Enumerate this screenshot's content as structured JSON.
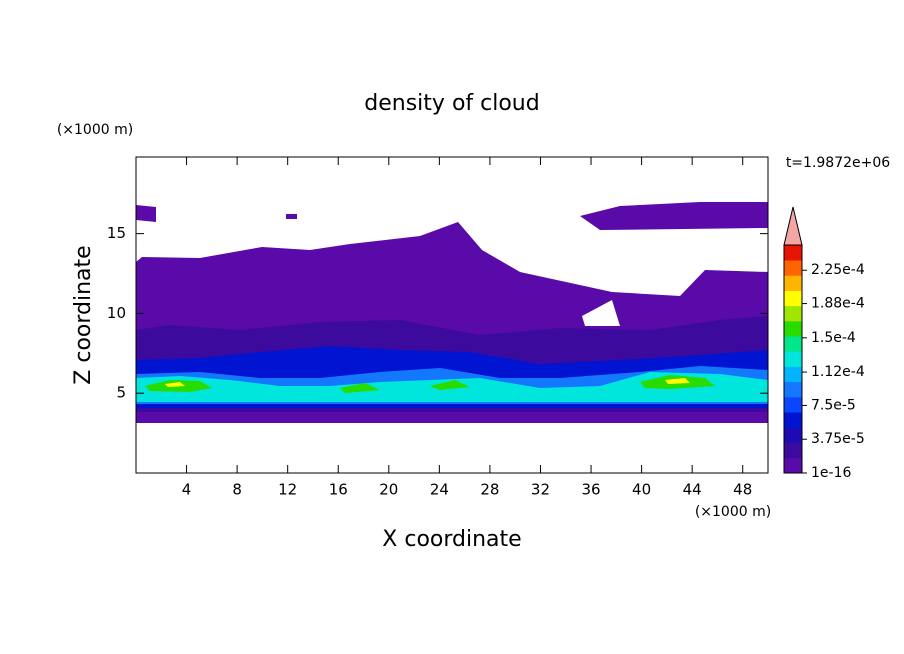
{
  "chart_data": {
    "type": "contour",
    "title": "density of cloud",
    "x_label": "X coordinate",
    "y_label": "Z coordinate",
    "x_unit": "(×1000 m)",
    "y_unit": "(×1000 m)",
    "time_label": "t=1.9872e+06",
    "xlim": [
      0,
      50
    ],
    "xticks": [
      4,
      8,
      12,
      16,
      20,
      24,
      28,
      32,
      36,
      40,
      44,
      48
    ],
    "ylim": [
      0,
      19.8
    ],
    "yticks": [
      5,
      10,
      15
    ],
    "colorbar": {
      "lim": [
        1e-16,
        0.000253
      ],
      "ticks": [
        1e-16,
        {
          "value": 3.75e-05,
          "label": "3.75e-5"
        },
        {
          "value": 7.5e-05,
          "label": "7.5e-5"
        },
        {
          "value": 0.000112,
          "label": "1.12e-4"
        },
        {
          "value": 0.00015,
          "label": "1.5e-4"
        },
        {
          "value": 0.000188,
          "label": "1.88e-4"
        },
        {
          "value": 0.000225,
          "label": "2.25e-4"
        }
      ],
      "colors": [
        "#5a0aa8",
        "#3c0a9c",
        "#1e0ab4",
        "#0014d2",
        "#0a46ff",
        "#1478ff",
        "#00b4ff",
        "#00e6dc",
        "#00e68c",
        "#28dc00",
        "#a0e600",
        "#ffff00",
        "#ffb400",
        "#ff6400",
        "#e61400"
      ],
      "extend_color": "#f4a6a6"
    }
  }
}
